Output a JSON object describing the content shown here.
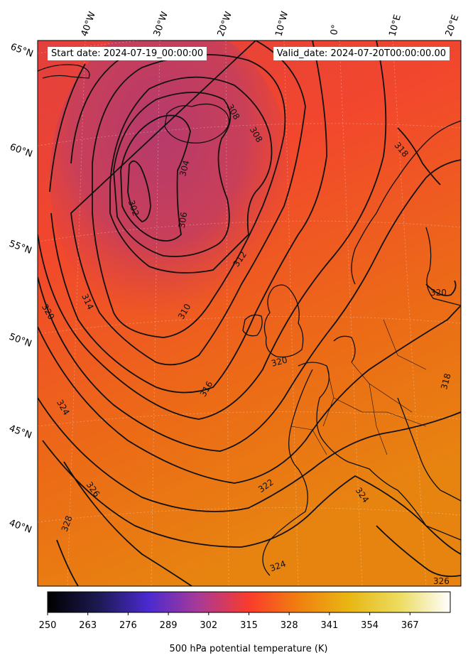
{
  "header": {
    "start_date": "Start date: 2024-07-19_00:00:00",
    "valid_date": "Valid_date: 2024-07-20T00:00:00.00"
  },
  "map": {
    "lon_labels": [
      "40°W",
      "30°W",
      "20°W",
      "10°W",
      "0°",
      "10°E",
      "20°E"
    ],
    "lat_labels": [
      "65°N",
      "60°N",
      "55°N",
      "50°N",
      "45°N",
      "40°N"
    ],
    "contour_labels": [
      "302",
      "304",
      "306",
      "308",
      "308",
      "310",
      "312",
      "314",
      "316",
      "318",
      "318",
      "320",
      "320",
      "322",
      "324",
      "324",
      "324",
      "326",
      "326",
      "328",
      "320"
    ],
    "colors": {
      "cold": "#b33b6a",
      "mid": "#f5492c",
      "warm": "#ea7a10",
      "contour": "#111111"
    }
  },
  "colorbar": {
    "ticks": [
      "250",
      "263",
      "276",
      "289",
      "302",
      "315",
      "328",
      "341",
      "354",
      "367"
    ],
    "label": "500 hPa potential temperature (K)",
    "min": 250,
    "max": 380,
    "stops": [
      "#000000",
      "#1c1950",
      "#4a2ad0",
      "#a93a96",
      "#fa3b2c",
      "#f08010",
      "#e8b714",
      "#ecdc60",
      "#ffffff"
    ]
  }
}
